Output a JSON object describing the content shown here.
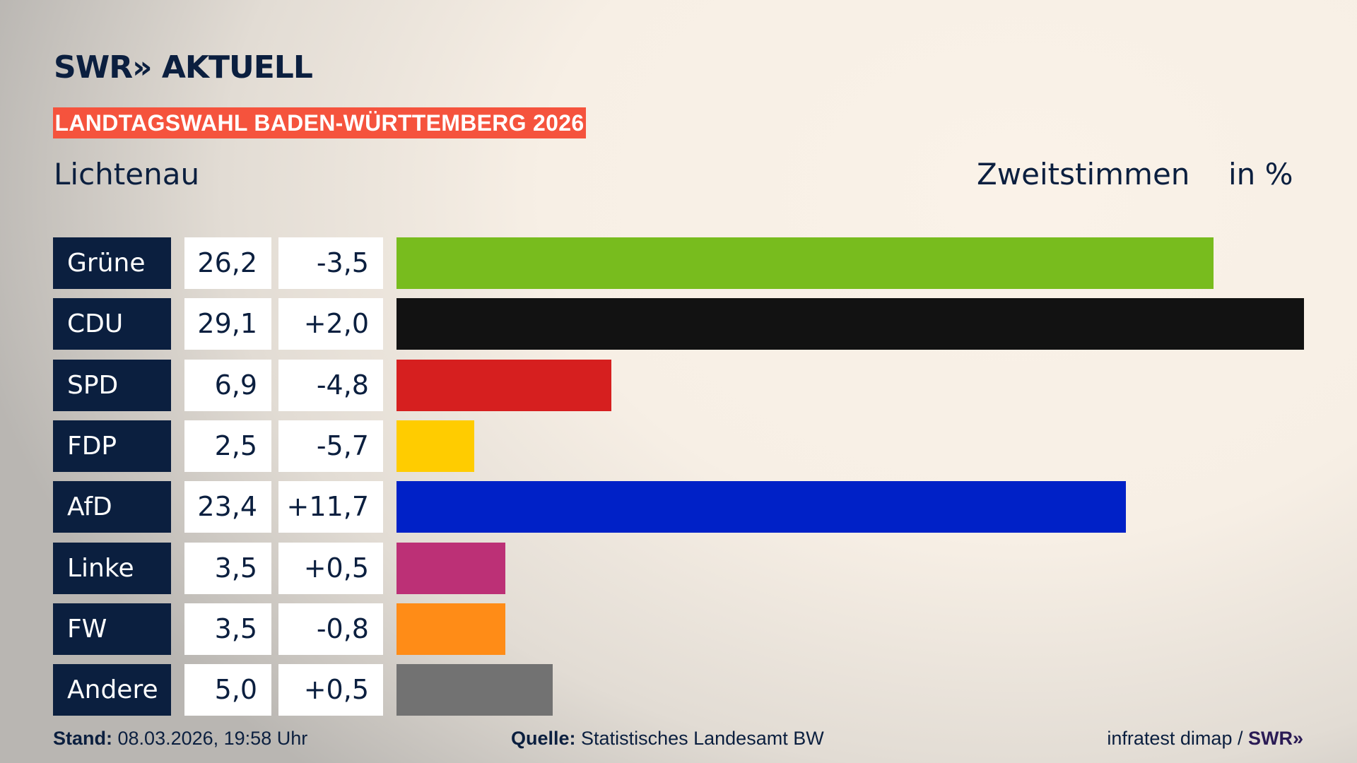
{
  "header": {
    "logo": "SWR» AKTUELL",
    "banner": "LANDTAGSWAHL BADEN-WÜRTTEMBERG 2026",
    "region": "Lichtenau",
    "vote_type": "Zweitstimmen",
    "unit": "in %"
  },
  "chart_data": {
    "type": "bar",
    "orientation": "horizontal",
    "categories": [
      "Grüne",
      "CDU",
      "SPD",
      "FDP",
      "AfD",
      "Linke",
      "FW",
      "Andere"
    ],
    "values": [
      26.2,
      29.1,
      6.9,
      2.5,
      23.4,
      3.5,
      3.5,
      5.0
    ],
    "value_labels": [
      "26,2",
      "29,1",
      "6,9",
      "2,5",
      "23,4",
      "3,5",
      "3,5",
      "5,0"
    ],
    "diff_labels": [
      "-3,5",
      "+2,0",
      "-4,8",
      "-5,7",
      "+11,7",
      "+0,5",
      "-0,8",
      "+0,5"
    ],
    "colors": [
      "#78bc1e",
      "#121212",
      "#d61f1f",
      "#ffcc00",
      "#0021c7",
      "#bc3076",
      "#ff8c17",
      "#727272"
    ],
    "xlim": [
      0,
      29.1
    ]
  },
  "footer": {
    "stand_label": "Stand:",
    "stand_value": "08.03.2026, 19:58 Uhr",
    "source_label": "Quelle:",
    "source_value": "Statistisches Landesamt BW",
    "credit": "infratest dimap /",
    "credit_logo": "SWR»"
  }
}
